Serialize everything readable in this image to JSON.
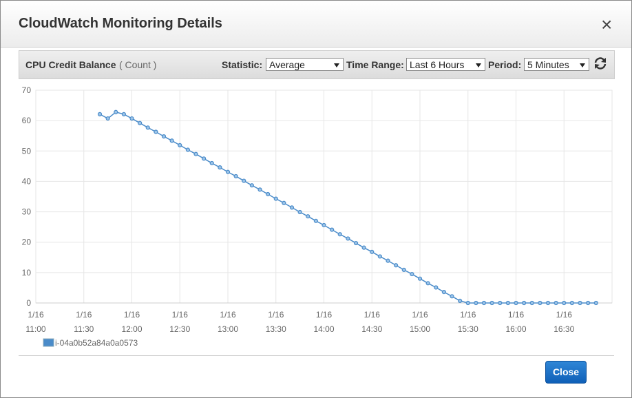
{
  "dialog": {
    "title": "CloudWatch Monitoring Details",
    "close_icon": "×",
    "close_button": "Close"
  },
  "toolbar": {
    "metric": "CPU Credit Balance",
    "unit": "( Count )",
    "statistic_label": "Statistic:",
    "statistic": "Average",
    "time_range_label": "Time Range:",
    "time_range": "Last 6 Hours",
    "period_label": "Period:",
    "period": "5 Minutes"
  },
  "chart_data": {
    "type": "line",
    "x": [
      "1/16 11:40",
      "1/16 11:45",
      "1/16 11:50",
      "1/16 11:55",
      "1/16 12:00",
      "1/16 12:05",
      "1/16 12:10",
      "1/16 12:15",
      "1/16 12:20",
      "1/16 12:25",
      "1/16 12:30",
      "1/16 12:35",
      "1/16 12:40",
      "1/16 12:45",
      "1/16 12:50",
      "1/16 12:55",
      "1/16 13:00",
      "1/16 13:05",
      "1/16 13:10",
      "1/16 13:15",
      "1/16 13:20",
      "1/16 13:25",
      "1/16 13:30",
      "1/16 13:35",
      "1/16 13:40",
      "1/16 13:45",
      "1/16 13:50",
      "1/16 13:55",
      "1/16 14:00",
      "1/16 14:05",
      "1/16 14:10",
      "1/16 14:15",
      "1/16 14:20",
      "1/16 14:25",
      "1/16 14:30",
      "1/16 14:35",
      "1/16 14:40",
      "1/16 14:45",
      "1/16 14:50",
      "1/16 14:55",
      "1/16 15:00",
      "1/16 15:05",
      "1/16 15:10",
      "1/16 15:15",
      "1/16 15:20",
      "1/16 15:25",
      "1/16 15:30",
      "1/16 15:35",
      "1/16 15:40",
      "1/16 15:45",
      "1/16 15:50",
      "1/16 15:55",
      "1/16 16:00",
      "1/16 16:05",
      "1/16 16:10",
      "1/16 16:15",
      "1/16 16:20",
      "1/16 16:25",
      "1/16 16:30",
      "1/16 16:35",
      "1/16 16:40",
      "1/16 16:45",
      "1/16 16:50"
    ],
    "xlim": [
      "1/16 11:00",
      "1/16 17:00"
    ],
    "xticks": [
      "1/16 11:00",
      "1/16 11:30",
      "1/16 12:00",
      "1/16 12:30",
      "1/16 13:00",
      "1/16 13:30",
      "1/16 14:00",
      "1/16 14:30",
      "1/16 15:00",
      "1/16 15:30",
      "1/16 16:00",
      "1/16 16:30"
    ],
    "ylim": [
      0,
      70
    ],
    "yticks": [
      0,
      10,
      20,
      30,
      40,
      50,
      60,
      70
    ],
    "grid": true,
    "series": [
      {
        "name": "i-04a0b52a84a0a0573",
        "color": "#4a8bc9",
        "values": [
          62.1,
          60.7,
          62.8,
          62.1,
          60.7,
          59.2,
          57.7,
          56.3,
          54.8,
          53.4,
          51.9,
          50.4,
          49.0,
          47.5,
          46.0,
          44.6,
          43.1,
          41.7,
          40.2,
          38.7,
          37.3,
          35.8,
          34.3,
          32.9,
          31.4,
          29.9,
          28.5,
          27.0,
          25.6,
          24.1,
          22.6,
          21.2,
          19.7,
          18.2,
          16.8,
          15.3,
          13.9,
          12.4,
          10.9,
          9.5,
          8.0,
          6.5,
          5.1,
          3.6,
          2.2,
          0.7,
          0,
          0,
          0,
          0,
          0,
          0,
          0,
          0,
          0,
          0,
          0,
          0,
          0,
          0,
          0,
          0,
          0
        ]
      }
    ]
  }
}
